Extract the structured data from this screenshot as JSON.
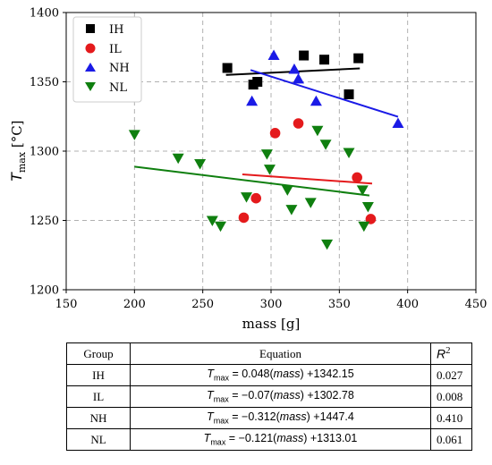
{
  "chart_data": {
    "type": "scatter",
    "xlabel": "mass [g]",
    "ylabel_main": "T",
    "ylabel_sub": "max",
    "ylabel_unit": " [°C]",
    "xlim": [
      150,
      450
    ],
    "ylim": [
      1200,
      1400
    ],
    "xticks": [
      150,
      200,
      250,
      300,
      350,
      400,
      450
    ],
    "yticks": [
      1200,
      1250,
      1300,
      1350,
      1400
    ],
    "grid": true,
    "legend_position": "top-left",
    "series": [
      {
        "name": "IH",
        "marker": "square",
        "color": "#000000",
        "points": [
          [
            268,
            1360
          ],
          [
            287,
            1348
          ],
          [
            290,
            1350
          ],
          [
            324,
            1369
          ],
          [
            339,
            1366
          ],
          [
            357,
            1341
          ],
          [
            364,
            1367
          ]
        ],
        "fit": {
          "slope": 0.048,
          "intercept": 1342.15,
          "x_range": [
            267,
            365
          ]
        }
      },
      {
        "name": "IL",
        "marker": "circle",
        "color": "#e41a1c",
        "points": [
          [
            280,
            1252
          ],
          [
            289,
            1266
          ],
          [
            303,
            1313
          ],
          [
            320,
            1320
          ],
          [
            363,
            1281
          ],
          [
            373,
            1251
          ]
        ],
        "fit": {
          "slope": -0.07,
          "intercept": 1302.78,
          "x_range": [
            279,
            374
          ]
        }
      },
      {
        "name": "NH",
        "marker": "triangle-up",
        "color": "#1a1ae6",
        "points": [
          [
            286,
            1336
          ],
          [
            302,
            1369
          ],
          [
            317,
            1359
          ],
          [
            320,
            1352
          ],
          [
            333,
            1336
          ],
          [
            393,
            1320
          ]
        ],
        "fit": {
          "slope": -0.312,
          "intercept": 1447.4,
          "x_range": [
            285,
            393
          ]
        }
      },
      {
        "name": "NL",
        "marker": "triangle-down",
        "color": "#0f7f0f",
        "points": [
          [
            200,
            1312
          ],
          [
            232,
            1295
          ],
          [
            248,
            1291
          ],
          [
            257,
            1250
          ],
          [
            263,
            1246
          ],
          [
            282,
            1267
          ],
          [
            297,
            1298
          ],
          [
            299,
            1287
          ],
          [
            312,
            1272
          ],
          [
            315,
            1258
          ],
          [
            329,
            1263
          ],
          [
            334,
            1315
          ],
          [
            340,
            1305
          ],
          [
            341,
            1233
          ],
          [
            357,
            1299
          ],
          [
            367,
            1272
          ],
          [
            368,
            1246
          ],
          [
            371,
            1260
          ]
        ],
        "fit": {
          "slope": -0.121,
          "intercept": 1313.01,
          "x_range": [
            200,
            372
          ]
        }
      }
    ]
  },
  "table": {
    "headers": {
      "group": "Group",
      "equation": "Equation",
      "r2": "R",
      "r2_sup": "2"
    },
    "rows": [
      {
        "group": "IH",
        "var": "T",
        "sub": "max",
        "rhs_prefix": " = 0.048(",
        "mass": "mass",
        "rhs_suffix": ") +1342.15",
        "r2": "0.027"
      },
      {
        "group": "IL",
        "var": "T",
        "sub": "max",
        "rhs_prefix": " = −0.07(",
        "mass": "mass",
        "rhs_suffix": ") +1302.78",
        "r2": "0.008"
      },
      {
        "group": "NH",
        "var": "T",
        "sub": "max",
        "rhs_prefix": " = −0.312(",
        "mass": "mass",
        "rhs_suffix": ") +1447.4",
        "r2": "0.410"
      },
      {
        "group": "NL",
        "var": "T",
        "sub": "max",
        "rhs_prefix": " = −0.121(",
        "mass": "mass",
        "rhs_suffix": ") +1313.01",
        "r2": "0.061"
      }
    ]
  }
}
